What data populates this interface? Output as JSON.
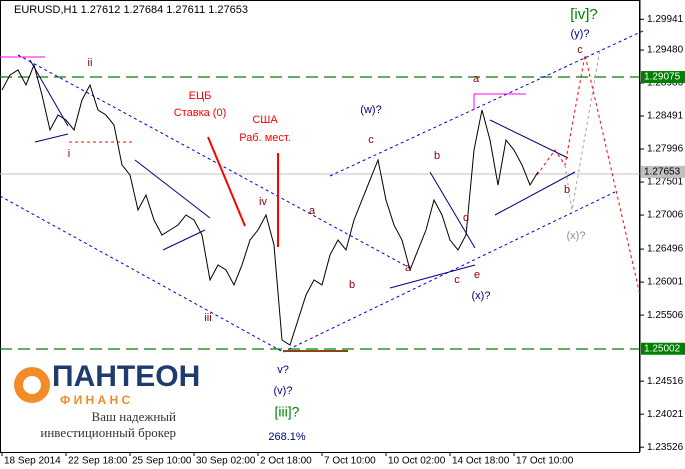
{
  "chart_data": {
    "type": "line",
    "title": "EURUSD,H1  1.27612 1.27684 1.27611 1.27653",
    "color": "#000000",
    "categories": [
      "18 Sep 2014",
      null,
      null,
      null,
      null,
      null,
      null,
      null,
      "22 Sep 18:00",
      null,
      null,
      null,
      null,
      null,
      null,
      null,
      "25 Sep 10:00",
      null,
      null,
      null,
      null,
      null,
      null,
      null,
      "30 Sep 02:00",
      null,
      null,
      null,
      null,
      null,
      null,
      null,
      "2 Oct 18:00",
      null,
      null,
      null,
      null,
      null,
      null,
      null,
      "7 Oct 10:00",
      null,
      null,
      null,
      null,
      null,
      null,
      null,
      "10 Oct 02:00",
      null,
      null,
      null,
      null,
      null,
      null,
      null,
      "14 Oct 18:00",
      null,
      null,
      null,
      null,
      null,
      null,
      null,
      "17 Oct 10:00",
      null,
      null,
      null
    ],
    "values": [
      1.28881,
      1.29106,
      1.29181,
      1.28956,
      1.29256,
      1.28806,
      1.28281,
      1.28506,
      1.28431,
      1.28281,
      1.28731,
      1.28956,
      1.28581,
      1.28506,
      1.28356,
      1.27757,
      1.27607,
      1.27082,
      1.27307,
      1.26932,
      1.26707,
      1.26782,
      1.26857,
      1.27007,
      1.26932,
      1.26707,
      1.26033,
      1.26258,
      1.26183,
      1.25958,
      1.26258,
      1.26632,
      1.26782,
      1.27007,
      1.26557,
      1.25133,
      1.25058,
      1.25433,
      1.25808,
      1.26033,
      1.25958,
      1.26408,
      1.26632,
      1.26483,
      1.26932,
      1.27232,
      1.27532,
      1.27832,
      1.27232,
      1.26857,
      1.26632,
      1.26183,
      1.26483,
      1.26782,
      1.27232,
      1.27007,
      1.26632,
      1.26483,
      1.26707,
      1.27981,
      1.28581,
      1.28131,
      1.27457,
      1.28131,
      1.27981,
      1.27757,
      1.27457,
      1.27653
    ],
    "ylim": [
      1.2346,
      1.3023
    ],
    "yticks": [
      1.29941,
      {
        "value": 1.2948,
        "label": "1.29480"
      },
      1.28986,
      1.28491,
      1.27996,
      1.27501,
      1.27006,
      1.26496,
      1.26001,
      1.25506,
      1.24516,
      1.24021,
      1.23526
    ],
    "levels": [
      {
        "value": 1.29075,
        "color": "#008000"
      },
      {
        "value": 1.27653,
        "color": "#c0c0c0"
      },
      {
        "value": 1.25002,
        "color": "#008000"
      }
    ],
    "annotations": [
      "ii",
      "i",
      "iii",
      "iv",
      "v?",
      "(v)?",
      "[iii]?",
      "268.1%",
      "a",
      "b",
      "c",
      "(w)?",
      "a",
      "b",
      "c",
      "d",
      "e",
      "(x)?",
      "a",
      "b",
      "c",
      "(y)?",
      "[iv]?",
      "(x)?",
      "ЕЦБ",
      "Ставка (0)",
      "США",
      "Раб. мест."
    ]
  },
  "logo": {
    "name": "ПАНТЕОН",
    "sub": "Ф И Н А Н С",
    "line1": "Ваш надежный",
    "line2": "инвестиционный брокер"
  }
}
